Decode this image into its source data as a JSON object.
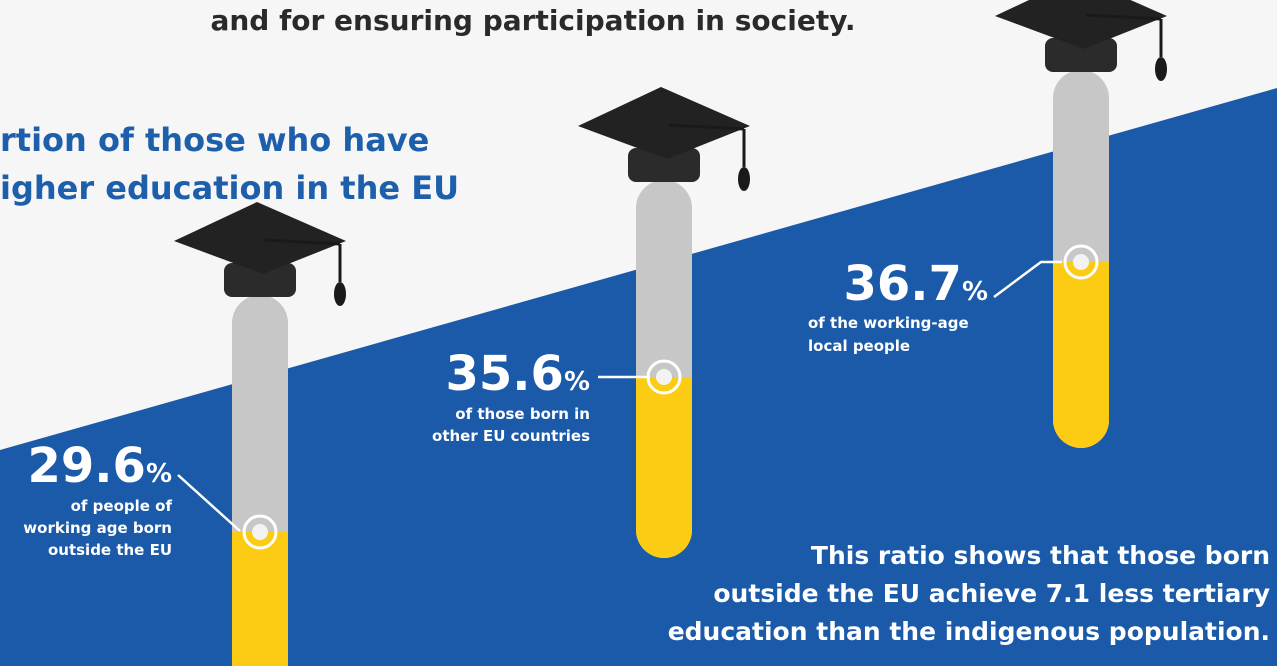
{
  "header": {
    "tagline": "and for ensuring participation in society.",
    "subtitle_line1": "rtion of those who have",
    "subtitle_line2": "igher education in the EU"
  },
  "colors": {
    "background_light": "#f6f6f6",
    "background_blue": "#1a5aa8",
    "heading_blue": "#1e5fab",
    "tube_gray": "#c7c7c7",
    "fill_yellow": "#fccc14",
    "cap_black": "#2b2b2b",
    "text_dark": "#2a2a2a",
    "text_white": "#ffffff"
  },
  "icons": [
    "graduation-cap-icon",
    "test-tube-icon",
    "level-marker-icon"
  ],
  "chart_data": {
    "type": "bar",
    "categories": [
      "born outside the EU",
      "born in other EU countries",
      "working-age local people"
    ],
    "values": [
      29.6,
      35.6,
      36.7
    ],
    "unit": "%",
    "labels": [
      {
        "value": "29.6",
        "unit": "%",
        "line1": "of people of",
        "line2": "working age born",
        "line3": "outside the EU"
      },
      {
        "value": "35.6",
        "unit": "%",
        "line1": "of those born in",
        "line2": "other EU countries"
      },
      {
        "value": "36.7",
        "unit": "%",
        "line1": "of the working-age",
        "line2": "local people"
      }
    ]
  },
  "conclusion": {
    "line1": "This ratio shows that those born",
    "line2": "outside the EU achieve 7.1 less tertiary",
    "line3": "education than the indigenous population."
  }
}
